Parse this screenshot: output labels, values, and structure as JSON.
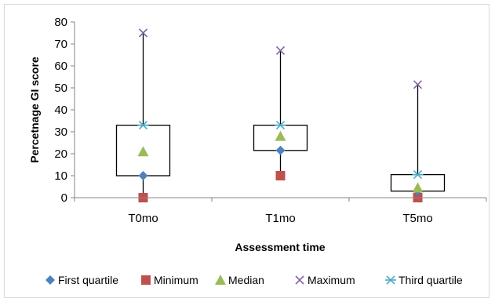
{
  "chart_data": {
    "type": "box",
    "xlabel": "Assessment time",
    "ylabel": "Percetnage GI score",
    "ylim": [
      0,
      80
    ],
    "yticks": [
      0,
      10,
      20,
      30,
      40,
      50,
      60,
      70,
      80
    ],
    "categories": [
      "T0mo",
      "T1mo",
      "T5mo"
    ],
    "series": [
      {
        "name": "First quartile",
        "values": [
          10,
          21.5,
          3
        ],
        "color": "#4f81bd",
        "marker": "diamond"
      },
      {
        "name": "Minimum",
        "values": [
          0,
          10,
          0
        ],
        "color": "#c0504d",
        "marker": "square"
      },
      {
        "name": "Median",
        "values": [
          21,
          28,
          4.5
        ],
        "color": "#9bbb59",
        "marker": "triangle"
      },
      {
        "name": "Maximum",
        "values": [
          75,
          67,
          51.5
        ],
        "color": "#8064a2",
        "marker": "x"
      },
      {
        "name": "Third quartile",
        "values": [
          33,
          33,
          10.5
        ],
        "color": "#4bacc6",
        "marker": "star"
      }
    ],
    "grid": false,
    "legend_position": "bottom"
  }
}
